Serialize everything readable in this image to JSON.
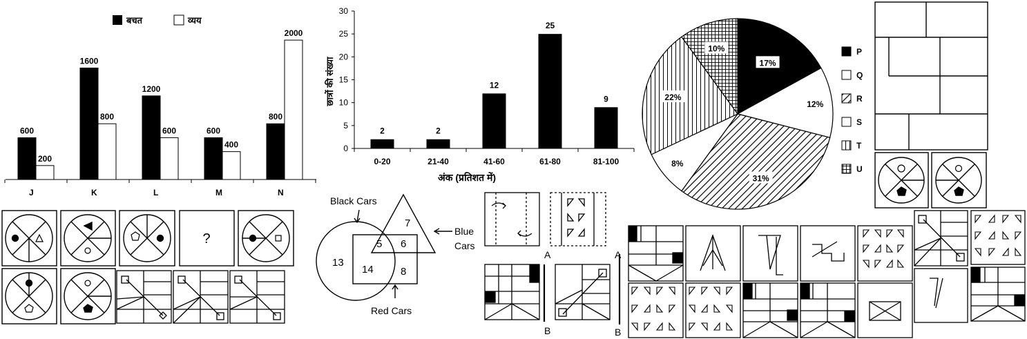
{
  "chart_data": [
    {
      "type": "bar",
      "legend": [
        "बचत",
        "व्यय"
      ],
      "categories": [
        "J",
        "K",
        "L",
        "M",
        "N"
      ],
      "series": [
        {
          "name": "बचत",
          "values": [
            600,
            1600,
            1200,
            600,
            800
          ]
        },
        {
          "name": "व्यय",
          "values": [
            200,
            800,
            600,
            400,
            2000
          ]
        }
      ],
      "ylim": [
        0,
        2100
      ],
      "series_labels": [
        [
          "600",
          "1600",
          "1200",
          "600",
          "800"
        ],
        [
          "200",
          "800",
          "600",
          "400",
          "2000"
        ]
      ]
    },
    {
      "type": "bar",
      "categories": [
        "0-20",
        "21-40",
        "41-60",
        "61-80",
        "81-100"
      ],
      "values": [
        2,
        2,
        12,
        25,
        9
      ],
      "value_labels": [
        "2",
        "2",
        "12",
        "25",
        "9"
      ],
      "ylabel": "छात्रों की संख्या",
      "xlabel": "अंक (प्रतिशत में)",
      "ylim": [
        0,
        30
      ],
      "yticks": [
        "0",
        "5",
        "10",
        "15",
        "20",
        "25",
        "30"
      ]
    },
    {
      "type": "pie",
      "slices": [
        {
          "label": "P",
          "value": 17,
          "text": "17%",
          "pattern": "solid"
        },
        {
          "label": "Q",
          "value": 12,
          "text": "12%",
          "pattern": "white"
        },
        {
          "label": "R",
          "value": 31,
          "text": "31%",
          "pattern": "diagonal"
        },
        {
          "label": "S",
          "value": 8,
          "text": "8%",
          "pattern": "white"
        },
        {
          "label": "T",
          "value": 22,
          "text": "22%",
          "pattern": "vertical"
        },
        {
          "label": "U",
          "value": 10,
          "text": "10%",
          "pattern": "grid"
        }
      ]
    }
  ],
  "venn": {
    "black_label": "Black Cars",
    "blue_label_1": "Blue",
    "blue_label_2": "Cars",
    "red_label": "Red Cars",
    "n13": "13",
    "n5": "5",
    "n6": "6",
    "n7": "7",
    "n14": "14",
    "n8": "8"
  },
  "puzzles": {
    "question_mark": "?",
    "mirror_a1": "A",
    "mirror_b1": "B",
    "mirror_a2": "A",
    "mirror_b2": "B"
  }
}
